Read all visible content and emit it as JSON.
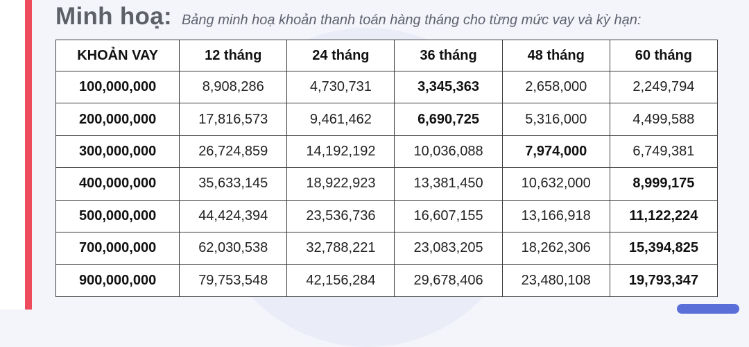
{
  "header": {
    "title": "Minh hoạ:",
    "subtitle": "Bảng minh hoạ khoản thanh toán hàng tháng cho từng mức vay và kỳ hạn:"
  },
  "table": {
    "columns": [
      "KHOẢN VAY",
      "12 tháng",
      "24 tháng",
      "36 tháng",
      "48 tháng",
      "60 tháng"
    ],
    "rows": [
      {
        "amount": "100,000,000",
        "values": [
          "8,908,286",
          "4,730,731",
          "3,345,363",
          "2,658,000",
          "2,249,794"
        ],
        "highlight": 2
      },
      {
        "amount": "200,000,000",
        "values": [
          "17,816,573",
          "9,461,462",
          "6,690,725",
          "5,316,000",
          "4,499,588"
        ],
        "highlight": 2
      },
      {
        "amount": "300,000,000",
        "values": [
          "26,724,859",
          "14,192,192",
          "10,036,088",
          "7,974,000",
          "6,749,381"
        ],
        "highlight": 3
      },
      {
        "amount": "400,000,000",
        "values": [
          "35,633,145",
          "18,922,923",
          "13,381,450",
          "10,632,000",
          "8,999,175"
        ],
        "highlight": 4
      },
      {
        "amount": "500,000,000",
        "values": [
          "44,424,394",
          "23,536,736",
          "16,607,155",
          "13,166,918",
          "11,122,224"
        ],
        "highlight": 4
      },
      {
        "amount": "700,000,000",
        "values": [
          "62,030,538",
          "32,788,221",
          "23,083,205",
          "18,262,306",
          "15,394,825"
        ],
        "highlight": 4
      },
      {
        "amount": "900,000,000",
        "values": [
          "79,753,548",
          "42,156,284",
          "29,678,406",
          "23,480,108",
          "19,793,347"
        ],
        "highlight": 4
      }
    ]
  },
  "colors": {
    "accent": "#ee4b5d",
    "button": "#5b6fd8"
  }
}
